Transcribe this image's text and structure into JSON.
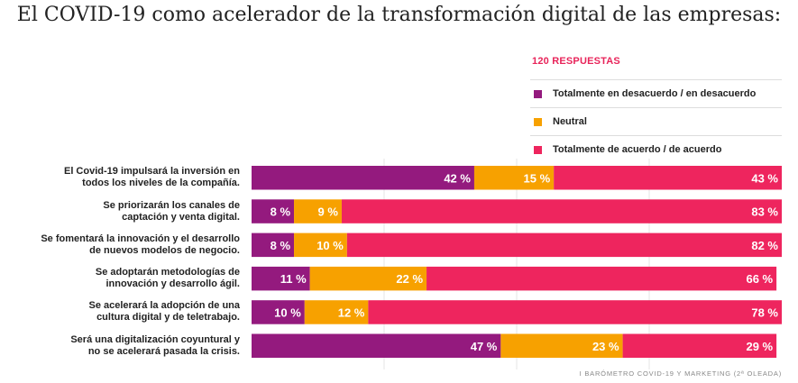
{
  "page": {
    "title": "El COVID-19 como acelerador de la transformación digital de las empresas:"
  },
  "legend": {
    "heading": "120 RESPUESTAS",
    "items": [
      {
        "label": "Totalmente en desacuerdo / en desacuerdo",
        "color": "#941a7e"
      },
      {
        "label": "Neutral",
        "color": "#f7a100"
      },
      {
        "label": "Totalmente de acuerdo / de acuerdo",
        "color": "#ee255e"
      }
    ]
  },
  "source_note": "I BARÓMETRO COVID-19 Y MARKETING (2ª OLEADA)",
  "chart_data": {
    "type": "bar",
    "orientation": "horizontal",
    "stacked": true,
    "categories": [
      "El Covid-19 impulsará la inversión en todos los niveles de la compañía.",
      "Se priorizarán los canales de captación y venta digital.",
      "Se fomentará la innovación y el desarrollo de nuevos modelos de negocio.",
      "Se adoptarán metodologías de innovación y desarrollo ágil.",
      "Se acelerará la adopción de una cultura digital y de teletrabajo.",
      "Será una digitalización coyuntural y no se acelerará pasada la crisis."
    ],
    "category_lines": [
      [
        "El Covid-19 impulsará la inversión en",
        "todos los niveles de la compañía."
      ],
      [
        "Se priorizarán los canales de",
        "captación y venta digital."
      ],
      [
        "Se fomentará la innovación y el desarrollo",
        "de nuevos modelos de negocio."
      ],
      [
        "Se adoptarán metodologías de",
        "innovación y desarrollo ágil."
      ],
      [
        "Se acelerará la adopción de una",
        "cultura digital y de teletrabajo."
      ],
      [
        "Será una digitalización coyuntural y",
        "no se acelerará pasada la crisis."
      ]
    ],
    "series": [
      {
        "name": "Totalmente en desacuerdo / en desacuerdo",
        "values": [
          42,
          8,
          8,
          11,
          10,
          47
        ],
        "labels": [
          "42 %",
          "8 %",
          "8 %",
          "11 %",
          "10 %",
          "47 %"
        ],
        "color": "#941a7e"
      },
      {
        "name": "Neutral",
        "values": [
          15,
          9,
          10,
          22,
          12,
          23
        ],
        "labels": [
          "15 %",
          "9 %",
          "10 %",
          "22 %",
          "12 %",
          "23 %"
        ],
        "color": "#f7a100"
      },
      {
        "name": "Totalmente de acuerdo / de acuerdo",
        "values": [
          43,
          83,
          82,
          66,
          78,
          29
        ],
        "labels": [
          "43 %",
          "83 %",
          "82 %",
          "66 %",
          "78 %",
          "29 %"
        ],
        "color": "#ee255e"
      }
    ],
    "xlim": [
      0,
      100
    ],
    "grid": true,
    "legend_position": "top-right"
  }
}
